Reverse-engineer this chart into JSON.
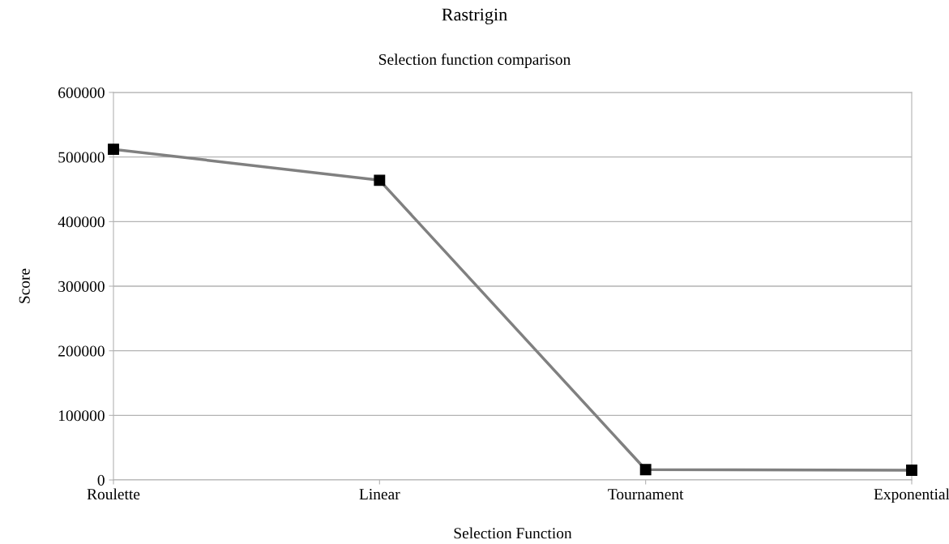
{
  "chart_data": {
    "type": "line",
    "title": "Rastrigin",
    "subtitle": "Selection function comparison",
    "xlabel": "Selection Function",
    "ylabel": "Score",
    "categories": [
      "Roulette",
      "Linear",
      "Tournament",
      "Exponential"
    ],
    "series": [
      {
        "color": "#808080",
        "values": [
          512000,
          464000,
          16000,
          15000
        ]
      }
    ],
    "ylim": [
      0,
      600000
    ],
    "yticks": [
      0,
      100000,
      200000,
      300000,
      400000,
      500000,
      600000
    ],
    "grid": "y",
    "marker": "square",
    "line_style": "solid"
  }
}
